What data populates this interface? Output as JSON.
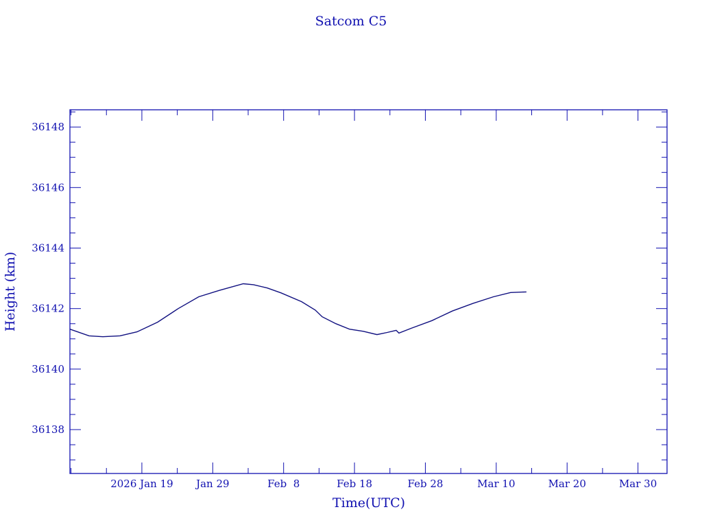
{
  "chart_data": {
    "type": "line",
    "title": "Satcom C5",
    "xlabel": "Time(UTC)",
    "ylabel": "Height (km)",
    "x_units": "days since 2026 Jan 19 (UTC)",
    "xlim": [
      -10.15,
      74.1
    ],
    "ylim": [
      36136.55,
      36148.57
    ],
    "x_major_ticks": [
      0,
      10,
      20,
      30,
      40,
      50,
      60,
      70
    ],
    "x_tick_labels": [
      "2026 Jan 19",
      "Jan 29",
      "Feb  8",
      "Feb 18",
      "Feb 28",
      "Mar 10",
      "Mar 20",
      "Mar 30"
    ],
    "x_minor_step": 5,
    "y_major_ticks": [
      36138,
      36140,
      36142,
      36144,
      36146,
      36148
    ],
    "y_tick_labels": [
      "36138",
      "36140",
      "36142",
      "36144",
      "36146",
      "36148"
    ],
    "y_minor_step": 0.5,
    "grid": false,
    "colors": {
      "axis": "#1010b0",
      "line": "#101080"
    },
    "series": [
      {
        "name": "Satcom C5 height",
        "x": [
          -10.15,
          -7.45,
          -5.51,
          -3.09,
          -0.68,
          2.22,
          5.13,
          8.03,
          10.93,
          14.31,
          15.76,
          17.7,
          19.63,
          22.53,
          24.47,
          25.44,
          27.37,
          29.3,
          31.24,
          33.17,
          34.62,
          35.88,
          36.27,
          38.01,
          40.91,
          43.81,
          46.71,
          49.61,
          52.03,
          54.26
        ],
        "y": [
          36141.32,
          36141.1,
          36141.07,
          36141.1,
          36141.23,
          36141.55,
          36142.0,
          36142.39,
          36142.6,
          36142.82,
          36142.79,
          36142.68,
          36142.52,
          36142.23,
          36141.95,
          36141.73,
          36141.5,
          36141.32,
          36141.25,
          36141.14,
          36141.21,
          36141.28,
          36141.19,
          36141.35,
          36141.6,
          36141.92,
          36142.17,
          36142.39,
          36142.53,
          36142.55
        ]
      }
    ]
  }
}
